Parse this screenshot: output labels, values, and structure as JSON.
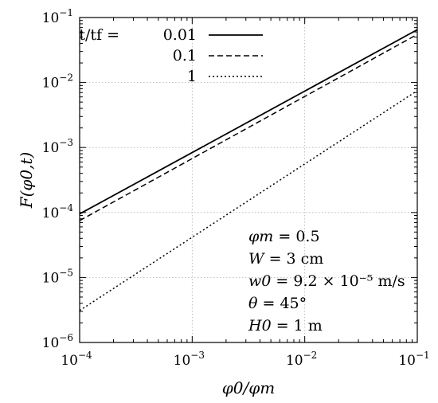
{
  "chart_data": {
    "type": "line",
    "xscale": "log",
    "yscale": "log",
    "xlim": [
      0.0001,
      0.1
    ],
    "ylim": [
      1e-06,
      0.1
    ],
    "grid": true,
    "xlabel": "φ0/φm",
    "ylabel": "F(φ0,t)",
    "xticks": [
      {
        "base": "10",
        "exp": "−4"
      },
      {
        "base": "10",
        "exp": "−3"
      },
      {
        "base": "10",
        "exp": "−2"
      },
      {
        "base": "10",
        "exp": "−1"
      }
    ],
    "yticks": [
      {
        "base": "10",
        "exp": "−6"
      },
      {
        "base": "10",
        "exp": "−5"
      },
      {
        "base": "10",
        "exp": "−4"
      },
      {
        "base": "10",
        "exp": "−3"
      },
      {
        "base": "10",
        "exp": "−2"
      },
      {
        "base": "10",
        "exp": "−1"
      }
    ],
    "legend_title": "t/tf =",
    "legend_position": "top-left",
    "series": [
      {
        "name": "0.01",
        "style": "solid",
        "x": [
          0.0001,
          0.1
        ],
        "y": [
          9.5e-05,
          0.065
        ]
      },
      {
        "name": "0.1",
        "style": "dashed",
        "x": [
          0.0001,
          0.1
        ],
        "y": [
          7.5e-05,
          0.055
        ]
      },
      {
        "name": "1",
        "style": "dotted",
        "x": [
          0.0001,
          0.1
        ],
        "y": [
          3.1e-06,
          0.0075
        ]
      }
    ],
    "parameters": [
      {
        "sym": "φm",
        "val": "= 0.5"
      },
      {
        "sym": "W",
        "val": "= 3 cm"
      },
      {
        "sym": "w0",
        "val": "= 9.2 × 10⁻⁵ m/s"
      },
      {
        "sym": "θ",
        "val": "= 45°"
      },
      {
        "sym": "H0",
        "val": "= 1 m"
      }
    ]
  }
}
